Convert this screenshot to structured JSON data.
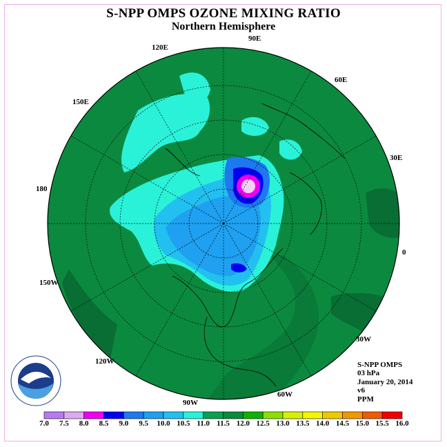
{
  "title": "S-NPP OMPS OZONE MIXING RATIO",
  "subtitle": "Northern Hemisphere",
  "longitude_labels": {
    "e90": "90E",
    "e120": "120E",
    "e60": "60E",
    "e150": "150E",
    "e30": "30E",
    "e180": "180",
    "e0": "0",
    "w150": "150W",
    "w30": "30W",
    "w120": "120W",
    "w60": "60W",
    "w90": "90W"
  },
  "info": {
    "instrument": "S-NPP OMPS",
    "level": "03 hPa",
    "date": "January 20, 2014",
    "version": "v6",
    "units": "PPM"
  },
  "logo": {
    "text": "NOAA",
    "ring_text": "NATIONAL OCEANIC AND ATMOSPHERIC ADMINISTRATION · U.S. DEPARTMENT OF COMMERCE"
  },
  "colorbar": {
    "ticks": [
      "7.0",
      "7.5",
      "8.0",
      "8.5",
      "9.0",
      "9.5",
      "10.0",
      "10.5",
      "11.0",
      "11.5",
      "12.0",
      "12.5",
      "13.0",
      "13.5",
      "14.0",
      "14.5",
      "15.0",
      "15.5",
      "16.0"
    ],
    "colors": [
      "#b57cf2",
      "#dcaaf2",
      "#f000f0",
      "#0000f0",
      "#1e78f0",
      "#1fa0f0",
      "#22c0f0",
      "#2af2d8",
      "#0aa050",
      "#0a8a3a",
      "#12b000",
      "#8be000",
      "#d8f000",
      "#f5f500",
      "#f0c800",
      "#f09800",
      "#f05a00",
      "#f00000",
      "#8a5a32"
    ]
  },
  "colors": {
    "background_field": "#0b8a3f",
    "map_outline": "#000000"
  }
}
